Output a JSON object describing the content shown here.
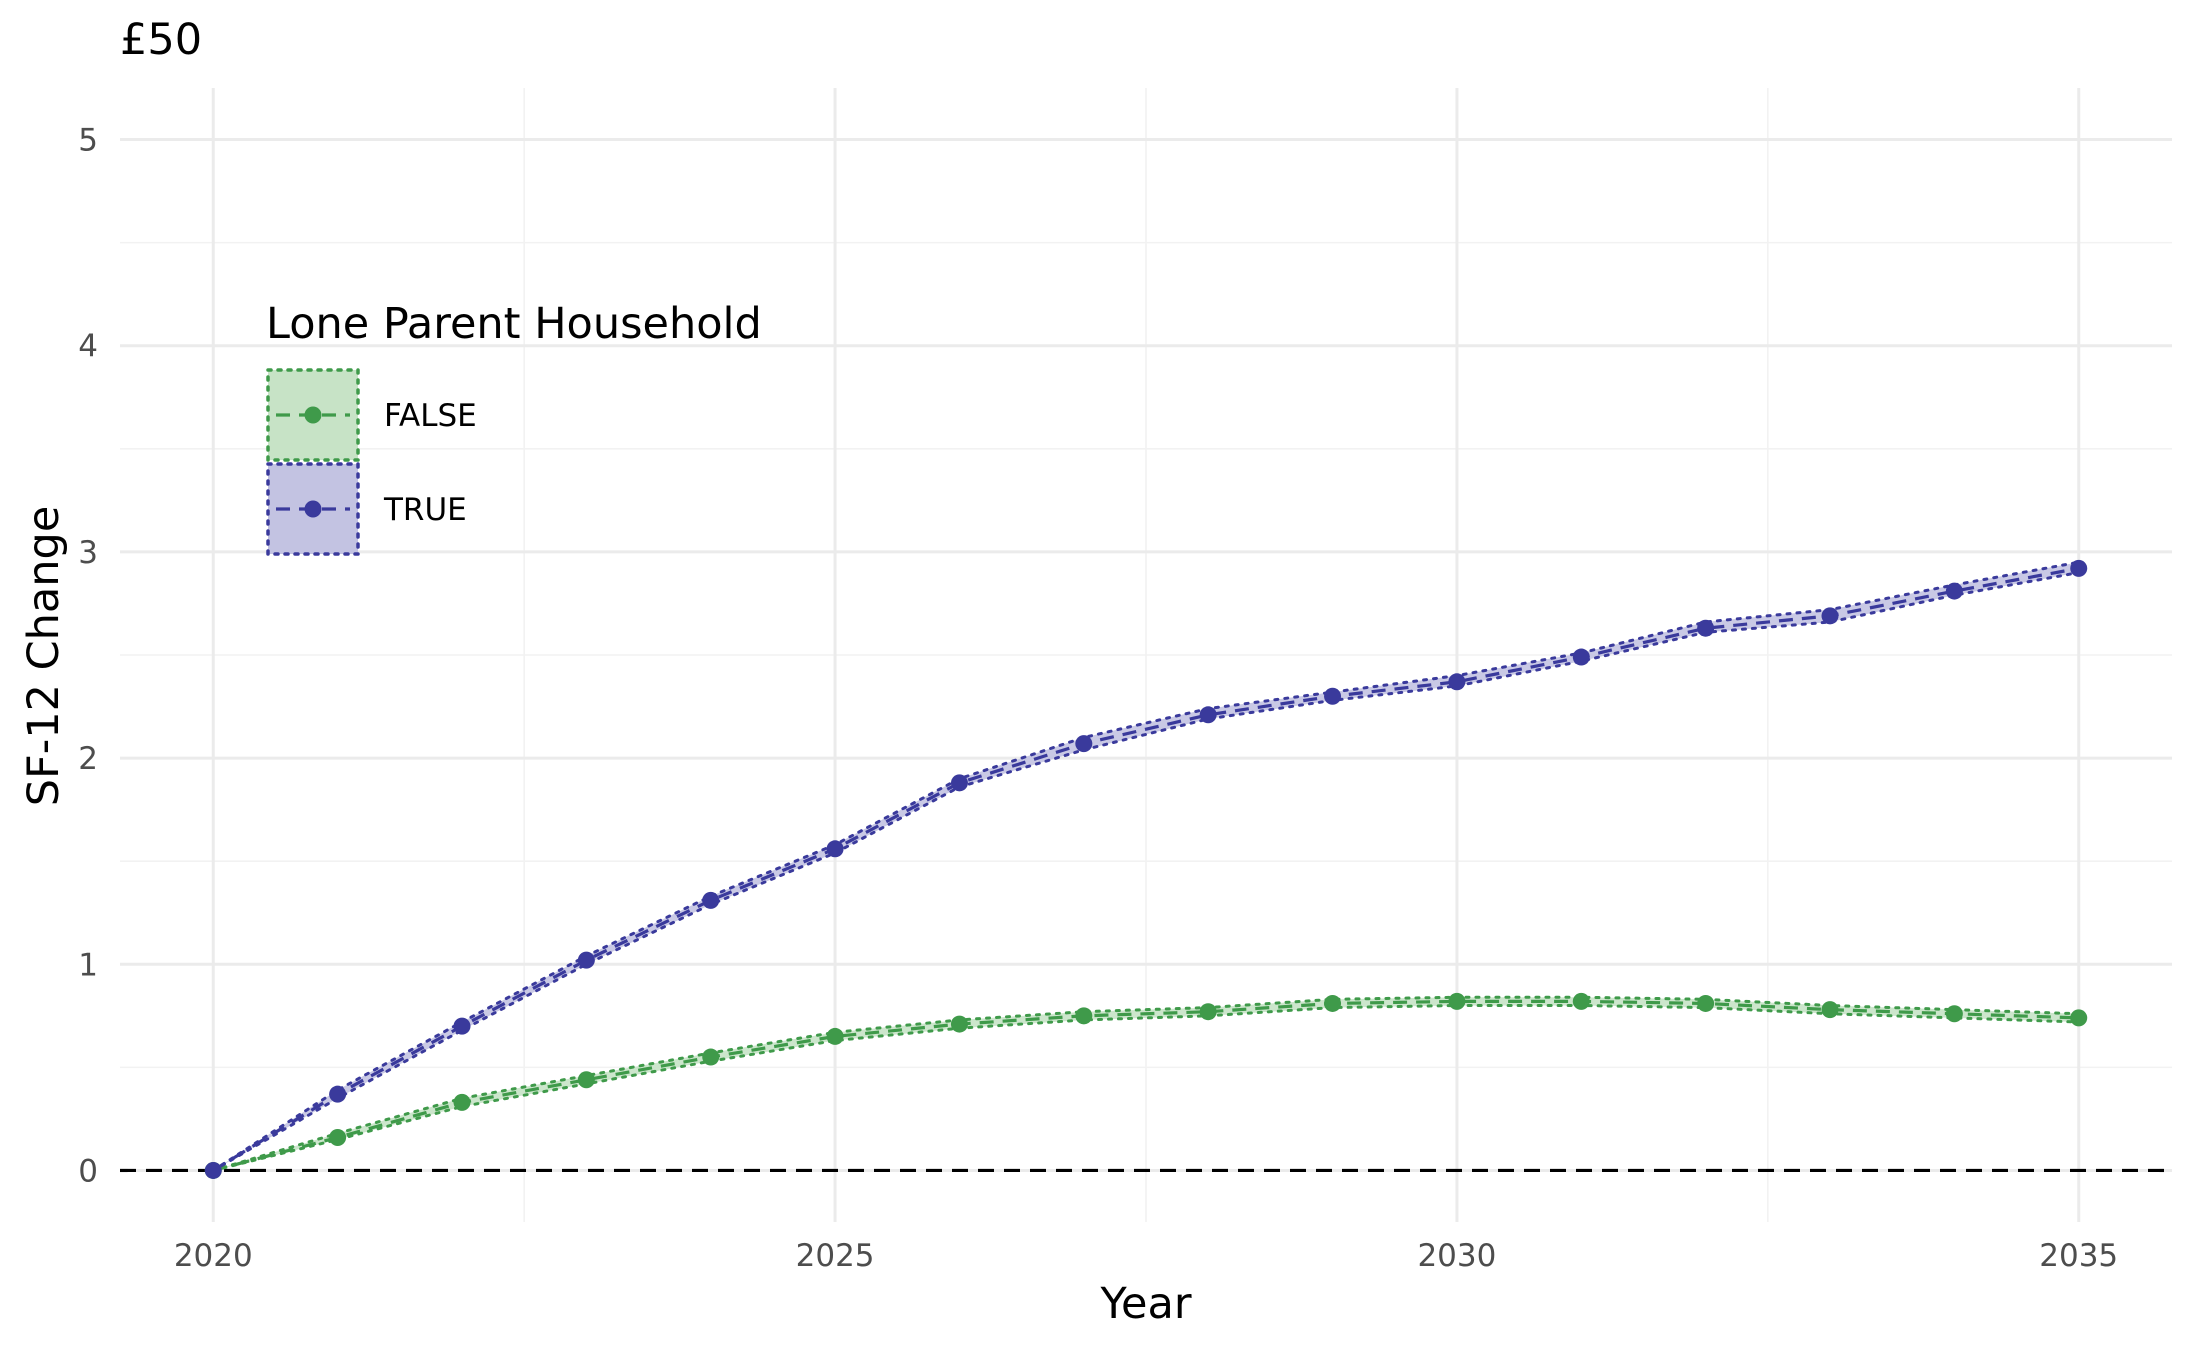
{
  "chart_data": {
    "type": "line",
    "title": "£50",
    "xlabel": "Year",
    "ylabel": "SF-12 Change",
    "xlim": [
      2019.25,
      2035.75
    ],
    "ylim": [
      -0.25,
      5.25
    ],
    "x_ticks": [
      2020,
      2025,
      2030,
      2035
    ],
    "y_ticks": [
      0,
      1,
      2,
      3,
      4,
      5
    ],
    "grid": true,
    "reference_line": {
      "y": 0,
      "style": "dashed",
      "color": "#000000"
    },
    "legend": {
      "title": "Lone Parent Household",
      "position": "top-left, inside plot"
    },
    "x": [
      2020,
      2021,
      2022,
      2023,
      2024,
      2025,
      2026,
      2027,
      2028,
      2029,
      2030,
      2031,
      2032,
      2033,
      2034,
      2035
    ],
    "series": [
      {
        "name": "FALSE",
        "color": "#3f9a4a",
        "fill": "#c7e3c6",
        "values": [
          0.0,
          0.16,
          0.33,
          0.44,
          0.55,
          0.65,
          0.71,
          0.75,
          0.77,
          0.81,
          0.82,
          0.82,
          0.81,
          0.78,
          0.76,
          0.74
        ],
        "lower": [
          0.0,
          0.15,
          0.31,
          0.42,
          0.53,
          0.63,
          0.69,
          0.73,
          0.75,
          0.79,
          0.8,
          0.8,
          0.79,
          0.76,
          0.74,
          0.72
        ],
        "upper": [
          0.0,
          0.18,
          0.35,
          0.46,
          0.57,
          0.67,
          0.73,
          0.77,
          0.79,
          0.83,
          0.84,
          0.84,
          0.83,
          0.8,
          0.78,
          0.76
        ]
      },
      {
        "name": "TRUE",
        "color": "#3a3a9c",
        "fill": "#c3c3e2",
        "values": [
          0.0,
          0.37,
          0.7,
          1.02,
          1.31,
          1.56,
          1.88,
          2.07,
          2.21,
          2.3,
          2.37,
          2.49,
          2.63,
          2.69,
          2.81,
          2.92
        ],
        "lower": [
          0.0,
          0.35,
          0.68,
          1.0,
          1.29,
          1.54,
          1.86,
          2.04,
          2.19,
          2.28,
          2.35,
          2.47,
          2.61,
          2.66,
          2.79,
          2.9
        ],
        "upper": [
          0.0,
          0.39,
          0.72,
          1.04,
          1.33,
          1.58,
          1.9,
          2.1,
          2.24,
          2.32,
          2.4,
          2.51,
          2.66,
          2.72,
          2.84,
          2.95
        ]
      }
    ]
  }
}
